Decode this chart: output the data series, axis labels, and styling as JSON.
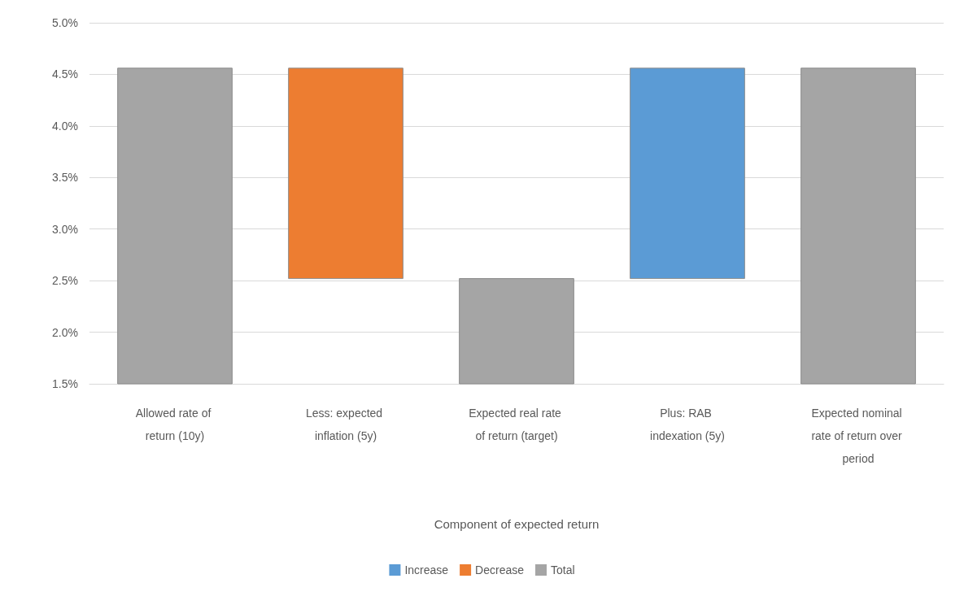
{
  "chart_data": {
    "type": "bar",
    "xlabel": "Component of expected return",
    "categories": [
      "Allowed rate of return (10y)",
      "Less: expected inflation (5y)",
      "Expected real rate of return (target)",
      "Plus: RAB indexation (5y)",
      "Expected nominal rate of return over period"
    ],
    "series": [
      {
        "name": "Increase",
        "color": "#5b9bd5",
        "values": [
          null,
          null,
          null,
          2.04,
          null
        ],
        "base": [
          null,
          null,
          null,
          2.52,
          null
        ]
      },
      {
        "name": "Decrease",
        "color": "#ed7d31",
        "values": [
          null,
          2.04,
          null,
          null,
          null
        ],
        "base": [
          null,
          2.52,
          null,
          null,
          null
        ]
      },
      {
        "name": "Total",
        "color": "#a5a5a5",
        "values": [
          4.56,
          null,
          2.52,
          null,
          4.56
        ]
      }
    ],
    "ylim": [
      1.5,
      5.0
    ],
    "yticks": [
      {
        "value": 1.5,
        "label": "1.5%"
      },
      {
        "value": 2.0,
        "label": "2.0%"
      },
      {
        "value": 2.5,
        "label": "2.5%"
      },
      {
        "value": 3.0,
        "label": "3.0%"
      },
      {
        "value": 3.5,
        "label": "3.5%"
      },
      {
        "value": 4.0,
        "label": "4.0%"
      },
      {
        "value": 4.5,
        "label": "4.5%"
      },
      {
        "value": 5.0,
        "label": "5.0%"
      }
    ],
    "grid": "y",
    "legend": "bottom"
  }
}
